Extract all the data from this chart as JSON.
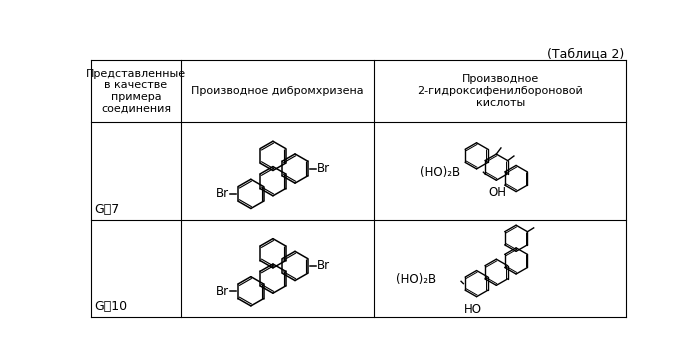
{
  "title": "(Таблица 2)",
  "col1_header": "Представленные\nв качестве\nпримера\nсоединения",
  "col2_header": "Производное дибромхризена",
  "col3_header": "Производное\n2-гидроксифенилбороновой\nкислоты",
  "row1_label": "G－7",
  "row2_label": "G－10",
  "bg_color": "#ffffff",
  "line_color": "#000000",
  "text_color": "#000000",
  "col_bounds": [
    5,
    120,
    370,
    695
  ],
  "row_bounds": [
    338,
    258,
    130,
    5
  ],
  "table_lw": 0.8,
  "struct_lw": 1.1,
  "font_size_header": 8.0,
  "font_size_label": 9.0,
  "font_size_br": 8.5,
  "font_size_title": 9.0
}
